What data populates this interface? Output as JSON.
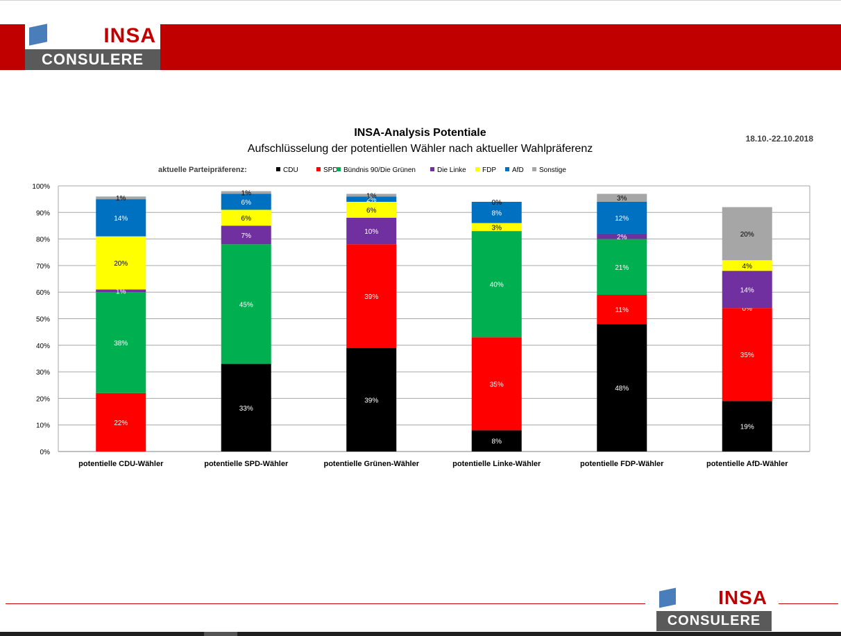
{
  "brand": {
    "top_word": "INSA",
    "bottom_word": "CONSULERE",
    "red": "#C00000",
    "gray": "#5A5A5A",
    "blue": "#4A7EBB"
  },
  "chart_data": {
    "type": "bar",
    "stacked": true,
    "title": "INSA-Analysis Potentiale",
    "subtitle": "Aufschlüsselung der potentiellen Wähler nach aktueller Wahlpräferenz",
    "date": "18.10.-22.10.2018",
    "legend_title": "aktuelle Parteipräferenz:",
    "legend_position": "top",
    "categories": [
      "potentielle CDU-Wähler",
      "potentielle SPD-Wähler",
      "potentielle Grünen-Wähler",
      "potentielle Linke-Wähler",
      "potentielle FDP-Wähler",
      "potentielle AfD-Wähler"
    ],
    "ylim": [
      0,
      100
    ],
    "yticks": [
      "0%",
      "10%",
      "20%",
      "30%",
      "40%",
      "50%",
      "60%",
      "70%",
      "80%",
      "90%",
      "100%"
    ],
    "grid": true,
    "series": [
      {
        "name": "CDU",
        "color": "#000000",
        "values": [
          0,
          33,
          39,
          8,
          48,
          19
        ],
        "labels": [
          "",
          "33%",
          "39%",
          "8%",
          "48%",
          "19%"
        ],
        "label_color": "#ffffff"
      },
      {
        "name": "SPD",
        "color": "#FF0000",
        "values": [
          22,
          0,
          39,
          35,
          11,
          35
        ],
        "labels": [
          "22%",
          "",
          "39%",
          "35%",
          "11%",
          "35%"
        ],
        "label_color": "#ffffff"
      },
      {
        "name": "Bündnis 90/Die Grünen",
        "color": "#00B050",
        "values": [
          38,
          45,
          0,
          40,
          21,
          0
        ],
        "labels": [
          "38%",
          "45%",
          "",
          "40%",
          "21%",
          "0%"
        ],
        "label_color": "#ffffff"
      },
      {
        "name": "Die Linke",
        "color": "#7030A0",
        "values": [
          1,
          7,
          10,
          0,
          2,
          14
        ],
        "labels": [
          "1%",
          "7%",
          "10%",
          "",
          "2%",
          "14%"
        ],
        "label_color": "#ffffff"
      },
      {
        "name": "FDP",
        "color": "#FFFF00",
        "values": [
          20,
          6,
          6,
          3,
          0,
          4
        ],
        "labels": [
          "20%",
          "6%",
          "6%",
          "3%",
          "",
          "4%"
        ],
        "label_color": "#000000"
      },
      {
        "name": "AfD",
        "color": "#0070C0",
        "values": [
          14,
          6,
          2,
          8,
          12,
          0
        ],
        "labels": [
          "14%",
          "6%",
          "2%",
          "8%",
          "12%",
          ""
        ],
        "label_color": "#ffffff"
      },
      {
        "name": "Sonstige",
        "color": "#A6A6A6",
        "values": [
          1,
          1,
          1,
          0,
          3,
          20
        ],
        "labels": [
          "1%",
          "1%",
          "1%",
          "0%",
          "3%",
          "20%"
        ],
        "label_color": "#000000"
      }
    ]
  }
}
